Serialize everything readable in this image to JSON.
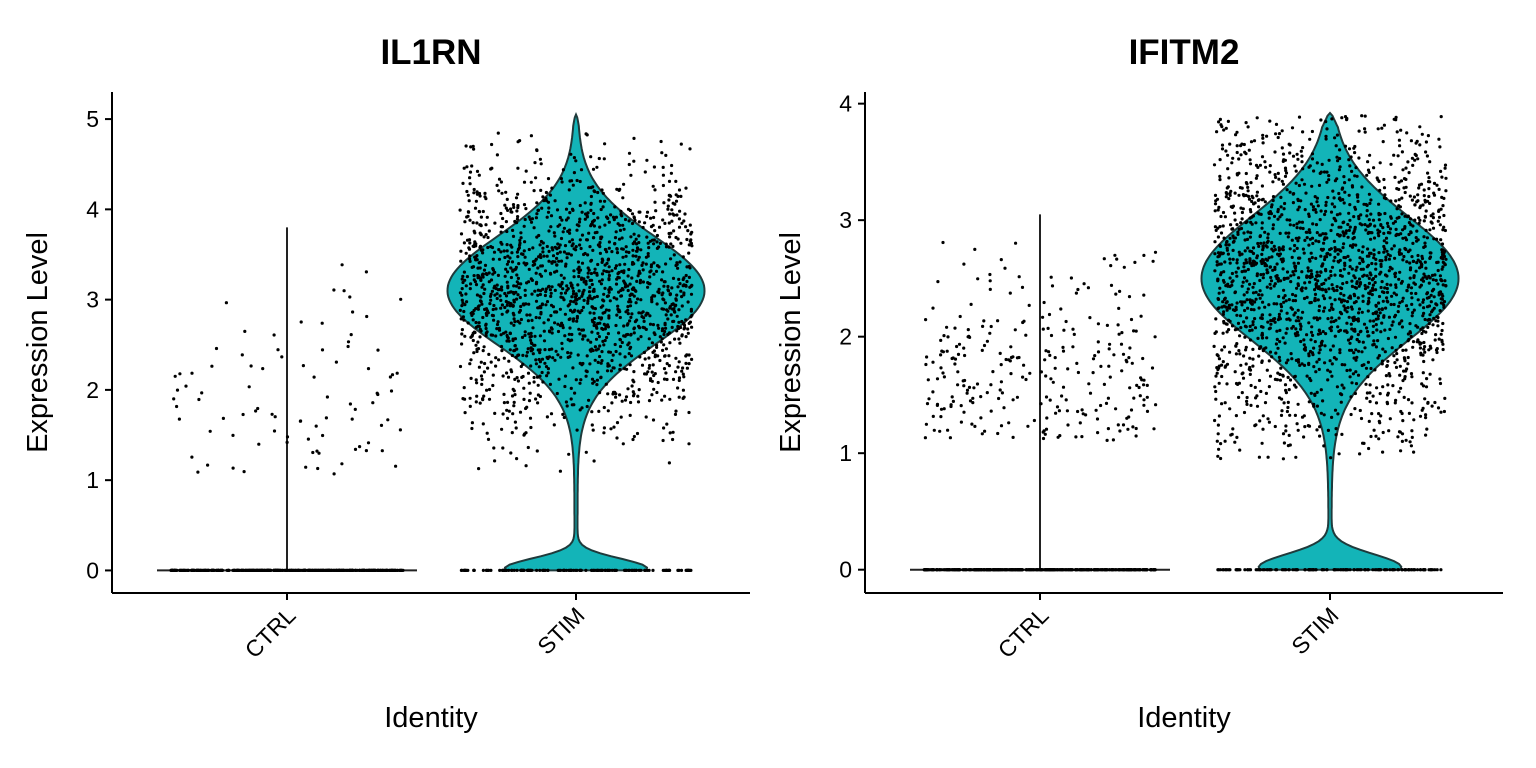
{
  "chart_data": [
    {
      "type": "violin",
      "title": "IL1RN",
      "xlabel": "Identity",
      "ylabel": "Expression Level",
      "categories": [
        "CTRL",
        "STIM"
      ],
      "yticks": [
        "0",
        "1",
        "2",
        "3",
        "4",
        "5"
      ],
      "ylim": [
        -0.25,
        5.3
      ],
      "fill_color": "#13B4B8",
      "legend": "none",
      "grid": false,
      "groups": [
        {
          "name": "CTRL",
          "max": 3.8,
          "zero_fraction": 0.97,
          "nonzero_range": [
            1.05,
            3.4
          ],
          "n_nonzero_points": 90,
          "n_zero_points": 400
        },
        {
          "name": "STIM",
          "max": 5.05,
          "zero_fraction": 0.08,
          "nonzero_range": [
            1.05,
            4.85
          ],
          "mode": 3.1,
          "n_nonzero_points": 1700,
          "n_zero_points": 140
        }
      ]
    },
    {
      "type": "violin",
      "title": "IFITM2",
      "xlabel": "Identity",
      "ylabel": "Expression Level",
      "categories": [
        "CTRL",
        "STIM"
      ],
      "yticks": [
        "0",
        "1",
        "2",
        "3",
        "4"
      ],
      "ylim": [
        -0.2,
        4.1
      ],
      "fill_color": "#13B4B8",
      "legend": "none",
      "grid": false,
      "groups": [
        {
          "name": "CTRL",
          "max": 3.05,
          "zero_fraction": 0.9,
          "nonzero_range": [
            1.1,
            2.85
          ],
          "n_nonzero_points": 280,
          "n_zero_points": 400
        },
        {
          "name": "STIM",
          "max": 3.92,
          "zero_fraction": 0.08,
          "nonzero_range": [
            0.95,
            3.9
          ],
          "mode": 2.5,
          "n_nonzero_points": 2000,
          "n_zero_points": 140
        }
      ]
    }
  ]
}
